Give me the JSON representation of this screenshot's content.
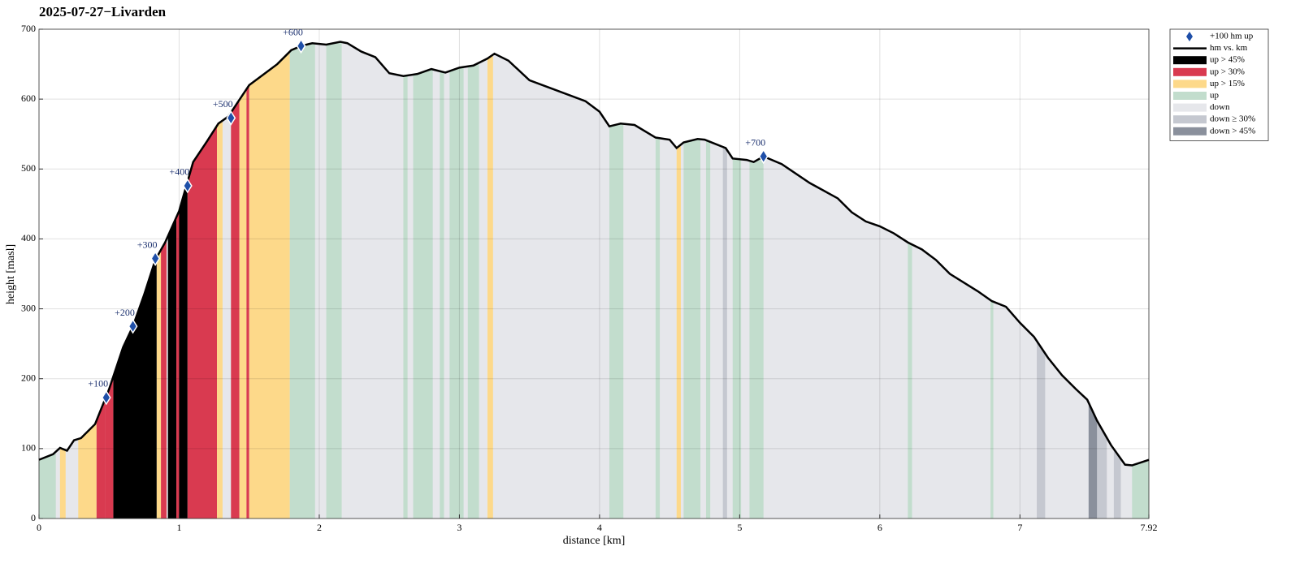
{
  "chart_data": {
    "type": "line",
    "title": "2025-07-27−Livarden",
    "xlabel": "distance [km]",
    "ylabel": "height [masl]",
    "xlim": [
      0,
      7.92
    ],
    "ylim": [
      0,
      700
    ],
    "xticks": [
      0,
      1,
      2,
      3,
      4,
      5,
      6,
      7,
      7.92
    ],
    "yticks": [
      0,
      100,
      200,
      300,
      400,
      500,
      600,
      700
    ],
    "grid": true,
    "legend": "outside-right",
    "profile": {
      "name": "hm vs. km",
      "color": "#000000",
      "base_color": "#e6e7eb",
      "x": [
        0,
        0.1,
        0.15,
        0.2,
        0.25,
        0.3,
        0.4,
        0.45,
        0.5,
        0.6,
        0.67,
        0.75,
        0.83,
        0.9,
        1.0,
        1.05,
        1.1,
        1.2,
        1.28,
        1.35,
        1.4,
        1.45,
        1.5,
        1.6,
        1.7,
        1.8,
        1.87,
        1.95,
        2.05,
        2.15,
        2.2,
        2.3,
        2.4,
        2.5,
        2.6,
        2.7,
        2.8,
        2.9,
        3.0,
        3.1,
        3.2,
        3.25,
        3.35,
        3.5,
        3.7,
        3.9,
        4.0,
        4.07,
        4.15,
        4.25,
        4.4,
        4.5,
        4.55,
        4.6,
        4.7,
        4.75,
        4.8,
        4.9,
        4.95,
        5.05,
        5.1,
        5.17,
        5.3,
        5.5,
        5.7,
        5.8,
        5.9,
        6.0,
        6.1,
        6.2,
        6.3,
        6.4,
        6.5,
        6.7,
        6.8,
        6.9,
        7.0,
        7.1,
        7.2,
        7.3,
        7.4,
        7.48,
        7.55,
        7.65,
        7.75,
        7.8,
        7.92
      ],
      "values": [
        84,
        92,
        101,
        97,
        112,
        115,
        135,
        160,
        185,
        245,
        275,
        320,
        370,
        395,
        440,
        475,
        510,
        540,
        565,
        575,
        590,
        605,
        620,
        635,
        650,
        670,
        676,
        680,
        678,
        682,
        680,
        668,
        660,
        637,
        633,
        636,
        643,
        638,
        645,
        648,
        658,
        665,
        655,
        627,
        612,
        597,
        582,
        561,
        565,
        563,
        545,
        542,
        530,
        538,
        543,
        542,
        538,
        530,
        515,
        513,
        510,
        518,
        507,
        480,
        458,
        438,
        425,
        418,
        408,
        395,
        385,
        370,
        350,
        325,
        311,
        303,
        280,
        260,
        230,
        205,
        185,
        170,
        140,
        105,
        77,
        76,
        84
      ]
    },
    "markers": {
      "name": "+100 hm up",
      "color": "#1f4fa8",
      "x": [
        0.48,
        0.67,
        0.83,
        1.06,
        1.37,
        1.87,
        5.17
      ],
      "values": [
        173,
        275,
        372,
        476,
        573,
        676,
        518
      ],
      "labels": [
        "+100",
        "+200",
        "+300",
        "+400",
        "+500",
        "+600",
        "+700"
      ]
    },
    "bands": [
      {
        "name": "up > 45%",
        "color": "#000000",
        "ranges": [
          [
            0.53,
            0.84
          ],
          [
            0.92,
            0.98
          ],
          [
            1.0,
            1.06
          ]
        ]
      },
      {
        "name": "up > 30%",
        "color": "#d93a50",
        "ranges": [
          [
            0.41,
            0.47
          ],
          [
            0.47,
            0.53
          ],
          [
            0.87,
            0.91
          ],
          [
            0.98,
            1.0
          ],
          [
            1.06,
            1.27
          ],
          [
            1.37,
            1.43
          ],
          [
            1.48,
            1.5
          ]
        ]
      },
      {
        "name": "up > 15%",
        "color": "#fdd98a",
        "ranges": [
          [
            0.15,
            0.19
          ],
          [
            0.28,
            0.41
          ],
          [
            0.84,
            0.87
          ],
          [
            1.27,
            1.31
          ],
          [
            1.43,
            1.48
          ],
          [
            1.5,
            1.79
          ],
          [
            3.2,
            3.24
          ],
          [
            4.55,
            4.58
          ]
        ]
      },
      {
        "name": "up",
        "color": "#c2ddcd",
        "ranges": [
          [
            0,
            0.12
          ],
          [
            1.79,
            1.97
          ],
          [
            2.05,
            2.16
          ],
          [
            2.6,
            2.63
          ],
          [
            2.67,
            2.81
          ],
          [
            2.86,
            2.89
          ],
          [
            2.93,
            3.03
          ],
          [
            3.06,
            3.14
          ],
          [
            4.07,
            4.17
          ],
          [
            4.4,
            4.43
          ],
          [
            4.6,
            4.72
          ],
          [
            4.76,
            4.79
          ],
          [
            4.95,
            5.01
          ],
          [
            5.07,
            5.17
          ],
          [
            6.2,
            6.23
          ],
          [
            6.79,
            6.81
          ],
          [
            7.8,
            7.92
          ]
        ]
      },
      {
        "name": "down",
        "color": "#e6e7eb",
        "ranges": []
      },
      {
        "name": "down ≥ 30%",
        "color": "#c5c8d0",
        "ranges": [
          [
            4.88,
            4.91
          ],
          [
            7.12,
            7.18
          ],
          [
            7.55,
            7.62
          ],
          [
            7.67,
            7.72
          ]
        ]
      },
      {
        "name": "down > 45%",
        "color": "#8a909c",
        "ranges": [
          [
            7.49,
            7.55
          ]
        ]
      }
    ]
  }
}
